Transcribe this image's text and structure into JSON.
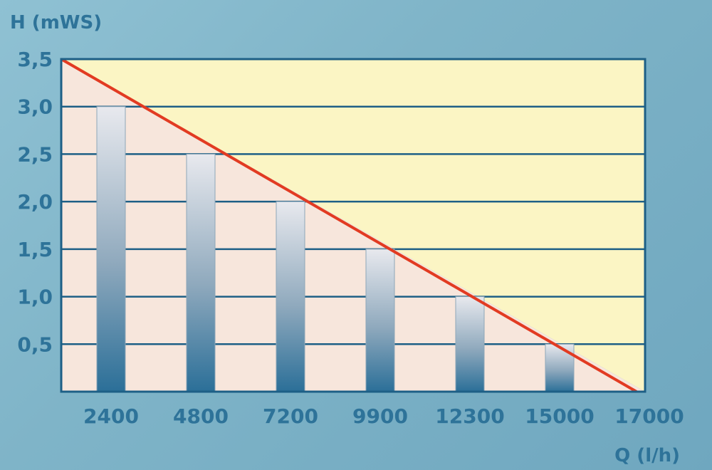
{
  "chart_data": {
    "type": "bar",
    "ylabel": "H (mWS)",
    "xlabel": "Q (l/h)",
    "ylim": [
      0,
      3.5
    ],
    "yticks": [
      "3,5",
      "3,0",
      "2,5",
      "2,0",
      "1,5",
      "1,0",
      "0,5"
    ],
    "ytick_values": [
      3.5,
      3.0,
      2.5,
      2.0,
      1.5,
      1.0,
      0.5
    ],
    "categories": [
      "2400",
      "4800",
      "7200",
      "9900",
      "12300",
      "15000"
    ],
    "values": [
      3.0,
      2.5,
      2.0,
      1.5,
      1.0,
      0.5
    ],
    "end_label": "17000",
    "line": {
      "x_start": 0,
      "y_start": 3.5,
      "x_end": 17000,
      "y_end": 0
    },
    "grid": true,
    "colors": {
      "plot_border": "#1d5f86",
      "fill_above_line": "#fbf5c4",
      "fill_below_line": "#f7e6dc",
      "line": "#e23b22",
      "bar_light": "#e8e9ee",
      "bar_dark": "#2b6f98",
      "text": "#2e7399"
    }
  }
}
